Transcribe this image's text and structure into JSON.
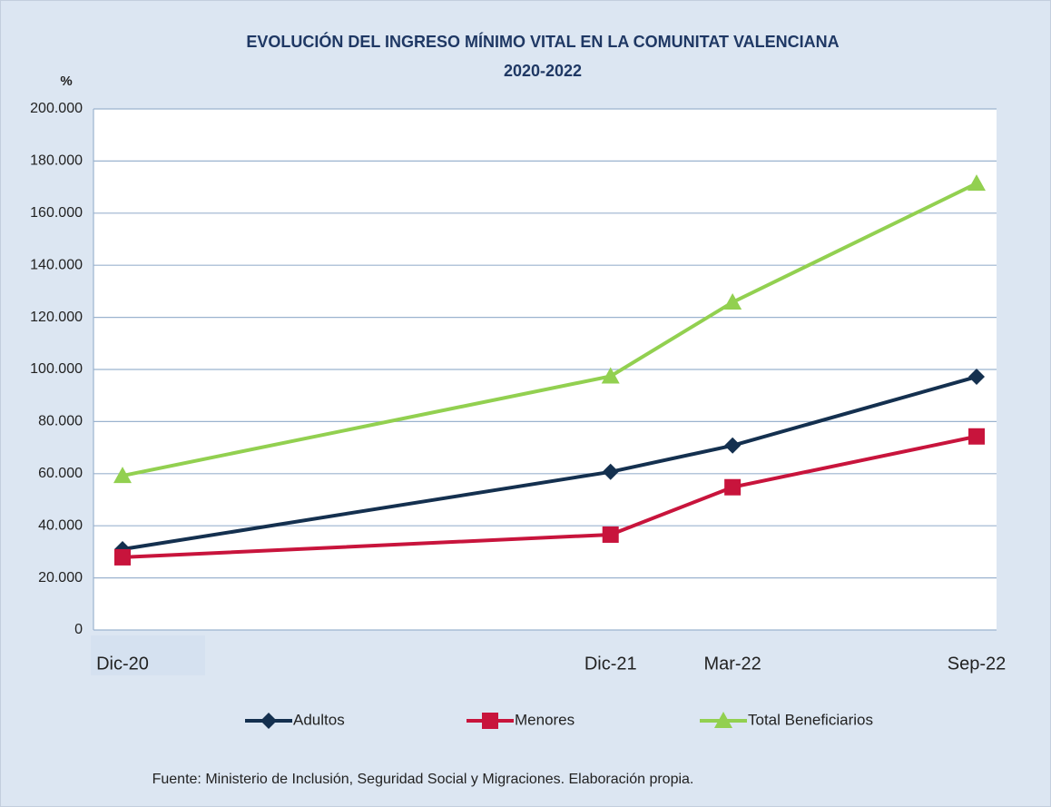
{
  "chart_data": {
    "type": "line",
    "title": [
      "EVOLUCIÓN DEL INGRESO MÍNIMO VITAL EN LA COMUNITAT VALENCIANA",
      "2020-2022"
    ],
    "y_label": "%",
    "categories": [
      "Dic-20",
      "Dic-21",
      "Mar-22",
      "Sep-22"
    ],
    "series": [
      {
        "name": "Adultos",
        "color": "#14304f",
        "marker": "diamond",
        "values": [
          31000,
          60700,
          70800,
          97200
        ]
      },
      {
        "name": "Menores",
        "color": "#c8143c",
        "marker": "square",
        "values": [
          27900,
          36600,
          54800,
          74300
        ]
      },
      {
        "name": "Total Beneficiarios",
        "color": "#92d050",
        "marker": "triangle",
        "values": [
          59200,
          97400,
          125800,
          171400
        ]
      }
    ],
    "ylim": [
      0,
      200000
    ],
    "yticks": [
      0,
      {
        "value": 20000,
        "label": "20.000"
      },
      {
        "value": 40000,
        "label": "40.000"
      },
      {
        "value": 60000,
        "label": "60.000"
      },
      {
        "value": 80000,
        "label": "80.000"
      },
      {
        "value": 100000,
        "label": "100.000"
      },
      {
        "value": 120000,
        "label": "120.000"
      },
      {
        "value": 140000,
        "label": "140.000"
      },
      {
        "value": 160000,
        "label": "160.000"
      },
      {
        "value": 180000,
        "label": "180.000"
      },
      {
        "value": 200000,
        "label": "200.000"
      }
    ],
    "grid": true,
    "legend": "bottom",
    "source": "Fuente: Ministerio de Inclusión, Seguridad Social y Migraciones. Elaboración propia."
  }
}
